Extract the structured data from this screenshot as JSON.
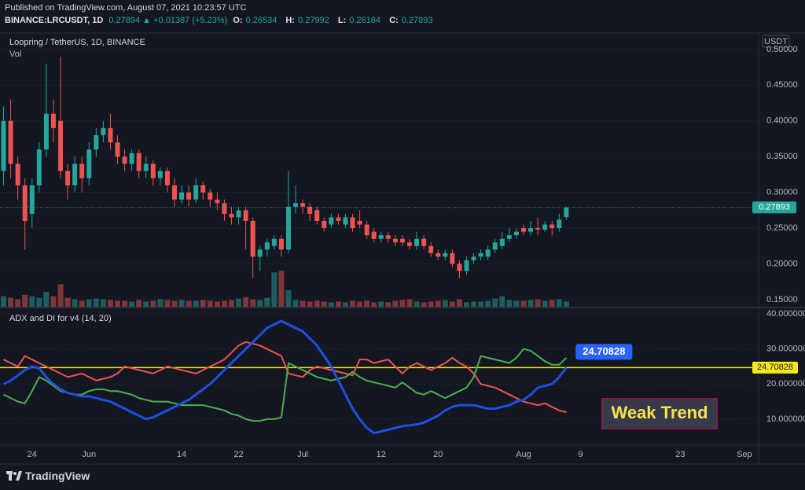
{
  "header": {
    "published": "Published on TradingView.com, August 07, 2021 10:23:57 UTC",
    "symbol": "BINANCE:LRCUSDT, 1D",
    "quote": "0.27894 ▲ +0.01387 (+5.23%)",
    "ohlc": [
      {
        "label": "O:",
        "value": "0.26534"
      },
      {
        "label": "H:",
        "value": "0.27992"
      },
      {
        "label": "L:",
        "value": "0.26184"
      },
      {
        "label": "C:",
        "value": "0.27893"
      }
    ]
  },
  "footer": {
    "brand": "TradingView"
  },
  "chart_data": [
    {
      "type": "candlestick",
      "title": "Loopring / TetherUS, 1D, BINANCE",
      "volume_label": "Vol",
      "y_axis_label": "USDT",
      "up_color": "#26a69a",
      "down_color": "#ef5350",
      "grid": true,
      "xlim": [
        -0.5,
        106
      ],
      "ylim": [
        0.14,
        0.523
      ],
      "yticks": [
        {
          "value": 0.15,
          "label": "0.15000"
        },
        {
          "value": 0.2,
          "label": "0.20000"
        },
        {
          "value": 0.25,
          "label": "0.25000"
        },
        {
          "value": 0.3,
          "label": "0.30000"
        },
        {
          "value": 0.35,
          "label": "0.35000"
        },
        {
          "value": 0.4,
          "label": "0.40000"
        },
        {
          "value": 0.45,
          "label": "0.45000"
        },
        {
          "value": 0.5,
          "label": "0.50000"
        }
      ],
      "open": [
        0.33,
        0.4,
        0.34,
        0.31,
        0.27,
        0.31,
        0.36,
        0.41,
        0.4,
        0.33,
        0.31,
        0.34,
        0.32,
        0.36,
        0.38,
        0.39,
        0.37,
        0.35,
        0.34,
        0.355,
        0.33,
        0.34,
        0.32,
        0.33,
        0.31,
        0.29,
        0.3,
        0.29,
        0.31,
        0.3,
        0.29,
        0.285,
        0.27,
        0.265,
        0.275,
        0.26,
        0.21,
        0.22,
        0.225,
        0.235,
        0.22,
        0.28,
        0.285,
        0.28,
        0.275,
        0.26,
        0.255,
        0.265,
        0.255,
        0.265,
        0.26,
        0.255,
        0.245,
        0.235,
        0.24,
        0.235,
        0.235,
        0.23,
        0.225,
        0.235,
        0.225,
        0.215,
        0.21,
        0.215,
        0.2,
        0.19,
        0.205,
        0.21,
        0.21,
        0.22,
        0.225,
        0.235,
        0.24,
        0.25,
        0.245,
        0.25,
        0.248,
        0.255,
        0.25,
        0.26534
      ],
      "high": [
        0.42,
        0.43,
        0.35,
        0.32,
        0.32,
        0.37,
        0.48,
        0.43,
        0.49,
        0.34,
        0.35,
        0.35,
        0.37,
        0.39,
        0.4,
        0.41,
        0.38,
        0.36,
        0.36,
        0.36,
        0.35,
        0.345,
        0.335,
        0.335,
        0.32,
        0.31,
        0.31,
        0.32,
        0.315,
        0.305,
        0.3,
        0.29,
        0.28,
        0.28,
        0.28,
        0.265,
        0.225,
        0.235,
        0.24,
        0.24,
        0.33,
        0.31,
        0.29,
        0.285,
        0.28,
        0.265,
        0.27,
        0.27,
        0.27,
        0.27,
        0.275,
        0.26,
        0.25,
        0.245,
        0.245,
        0.24,
        0.24,
        0.235,
        0.245,
        0.24,
        0.23,
        0.22,
        0.22,
        0.22,
        0.205,
        0.21,
        0.215,
        0.22,
        0.225,
        0.235,
        0.245,
        0.25,
        0.25,
        0.255,
        0.26,
        0.265,
        0.26,
        0.26,
        0.27,
        0.27992
      ],
      "low": [
        0.31,
        0.32,
        0.29,
        0.22,
        0.25,
        0.3,
        0.35,
        0.37,
        0.32,
        0.29,
        0.3,
        0.3,
        0.31,
        0.35,
        0.37,
        0.36,
        0.34,
        0.33,
        0.33,
        0.32,
        0.32,
        0.31,
        0.31,
        0.3,
        0.28,
        0.285,
        0.28,
        0.285,
        0.29,
        0.28,
        0.275,
        0.26,
        0.255,
        0.255,
        0.22,
        0.18,
        0.19,
        0.21,
        0.22,
        0.21,
        0.215,
        0.27,
        0.27,
        0.26,
        0.255,
        0.245,
        0.25,
        0.255,
        0.25,
        0.245,
        0.25,
        0.235,
        0.23,
        0.23,
        0.23,
        0.225,
        0.225,
        0.22,
        0.22,
        0.22,
        0.21,
        0.205,
        0.205,
        0.195,
        0.18,
        0.185,
        0.2,
        0.205,
        0.205,
        0.215,
        0.22,
        0.23,
        0.235,
        0.24,
        0.24,
        0.24,
        0.245,
        0.24,
        0.245,
        0.26184
      ],
      "close": [
        0.4,
        0.34,
        0.31,
        0.26,
        0.31,
        0.36,
        0.41,
        0.39,
        0.33,
        0.31,
        0.34,
        0.32,
        0.36,
        0.38,
        0.39,
        0.37,
        0.35,
        0.34,
        0.355,
        0.33,
        0.34,
        0.32,
        0.33,
        0.31,
        0.29,
        0.3,
        0.29,
        0.31,
        0.3,
        0.29,
        0.285,
        0.27,
        0.265,
        0.275,
        0.26,
        0.21,
        0.22,
        0.23,
        0.235,
        0.22,
        0.28,
        0.285,
        0.28,
        0.27,
        0.26,
        0.25,
        0.265,
        0.26,
        0.265,
        0.25,
        0.255,
        0.24,
        0.235,
        0.24,
        0.235,
        0.23,
        0.23,
        0.225,
        0.235,
        0.225,
        0.215,
        0.21,
        0.215,
        0.2,
        0.19,
        0.205,
        0.21,
        0.215,
        0.22,
        0.23,
        0.235,
        0.24,
        0.245,
        0.245,
        0.25,
        0.248,
        0.255,
        0.25,
        0.262,
        0.27893
      ],
      "volume": [
        14,
        12,
        10,
        16,
        14,
        12,
        20,
        14,
        30,
        12,
        10,
        8,
        10,
        11,
        10,
        9,
        8,
        8,
        7,
        9,
        7,
        8,
        10,
        9,
        8,
        9,
        8,
        8,
        9,
        8,
        7,
        8,
        9,
        11,
        13,
        10,
        9,
        12,
        46,
        48,
        22,
        9,
        8,
        7,
        8,
        7,
        6,
        7,
        6,
        8,
        7,
        8,
        6,
        7,
        6,
        8,
        9,
        10,
        7,
        6,
        7,
        8,
        9,
        7,
        10,
        6,
        7,
        7,
        8,
        11,
        14,
        9,
        8,
        8,
        9,
        10,
        8,
        9,
        10,
        7
      ]
    },
    {
      "type": "line",
      "title": "ADX and DI for v4 (14, 20)",
      "annotation": "Weak Trend",
      "grid": true,
      "xlim": [
        -0.5,
        106
      ],
      "ylim": [
        2.8,
        41.6
      ],
      "yticks": [
        {
          "value": 10,
          "label": "10.000000"
        },
        {
          "value": 20,
          "label": "20.000000"
        },
        {
          "value": 30,
          "label": "30.000000"
        },
        {
          "value": 40,
          "label": "40.000000"
        }
      ],
      "xticks": [
        {
          "value": 4,
          "label": "24"
        },
        {
          "value": 12,
          "label": "Jun"
        },
        {
          "value": 25,
          "label": "14"
        },
        {
          "value": 33,
          "label": "22"
        },
        {
          "value": 42,
          "label": "Jul"
        },
        {
          "value": 53,
          "label": "12"
        },
        {
          "value": 61,
          "label": "20"
        },
        {
          "value": 73,
          "label": "Aug"
        },
        {
          "value": 81,
          "label": "9"
        },
        {
          "value": 95,
          "label": "23"
        },
        {
          "value": 104,
          "label": "Sep"
        }
      ],
      "level": 24.70828,
      "level_color": "#f5e71c",
      "series": [
        {
          "color": "#1f4fe0",
          "values": [
            20,
            21,
            22.5,
            24,
            25,
            24.5,
            22,
            20,
            18.5,
            17.5,
            17,
            16.5,
            16.5,
            16,
            15.5,
            15,
            14,
            13,
            12,
            11,
            10,
            10.5,
            11.5,
            12.5,
            13.5,
            14.5,
            15.5,
            17,
            18.5,
            20,
            22,
            24,
            26,
            28,
            30,
            32,
            34,
            36,
            37,
            38,
            37,
            36,
            35,
            33,
            31,
            28,
            25,
            21,
            17,
            13,
            10,
            7.5,
            6,
            6.5,
            7,
            7.5,
            8,
            8.2,
            8.5,
            9,
            10,
            11,
            12.5,
            13.5,
            14,
            14,
            14,
            13.5,
            13,
            13,
            13.5,
            14,
            15,
            15.5,
            17,
            19,
            19.5,
            20,
            22,
            24.70828
          ]
        },
        {
          "color": "#4caf50",
          "values": [
            17,
            16,
            15,
            14.5,
            18,
            22,
            21,
            19.5,
            18,
            17.5,
            17,
            17,
            18,
            18.5,
            18.5,
            18,
            18,
            17.5,
            17,
            16,
            15.5,
            15,
            15,
            15,
            14.5,
            14,
            14,
            14,
            14,
            13.5,
            13,
            12.5,
            11.5,
            11,
            10,
            9.5,
            9.5,
            10,
            10,
            10.5,
            26,
            25,
            24,
            23,
            22,
            21.5,
            21,
            21.5,
            22,
            23.5,
            22,
            21,
            20.5,
            20,
            19.5,
            19,
            20.5,
            19,
            17.5,
            17,
            18,
            17,
            16,
            17,
            18,
            19,
            22,
            28,
            27.5,
            27,
            26.5,
            26,
            27.5,
            30,
            29.5,
            28,
            26.5,
            25.5,
            25.5,
            27.5
          ]
        },
        {
          "color": "#f05350",
          "values": [
            27,
            26,
            25,
            28,
            27,
            26,
            25,
            24,
            23,
            22,
            22.5,
            23,
            22,
            21,
            21.5,
            22,
            23,
            25,
            24.5,
            24,
            23.5,
            23,
            24,
            25,
            24.5,
            24,
            23.5,
            23,
            24,
            25,
            26,
            27,
            29,
            31,
            32,
            31.5,
            31,
            30,
            29,
            28,
            23,
            22.5,
            22,
            24,
            25,
            24.5,
            24,
            23.5,
            23,
            22.5,
            27,
            27,
            26,
            26.5,
            27,
            25,
            23,
            25,
            26,
            25,
            24,
            25,
            26,
            27.5,
            26,
            25,
            23,
            20,
            19.5,
            19,
            18,
            17,
            16,
            15,
            14.5,
            14,
            14.5,
            13.5,
            12.5,
            12
          ]
        }
      ]
    }
  ]
}
